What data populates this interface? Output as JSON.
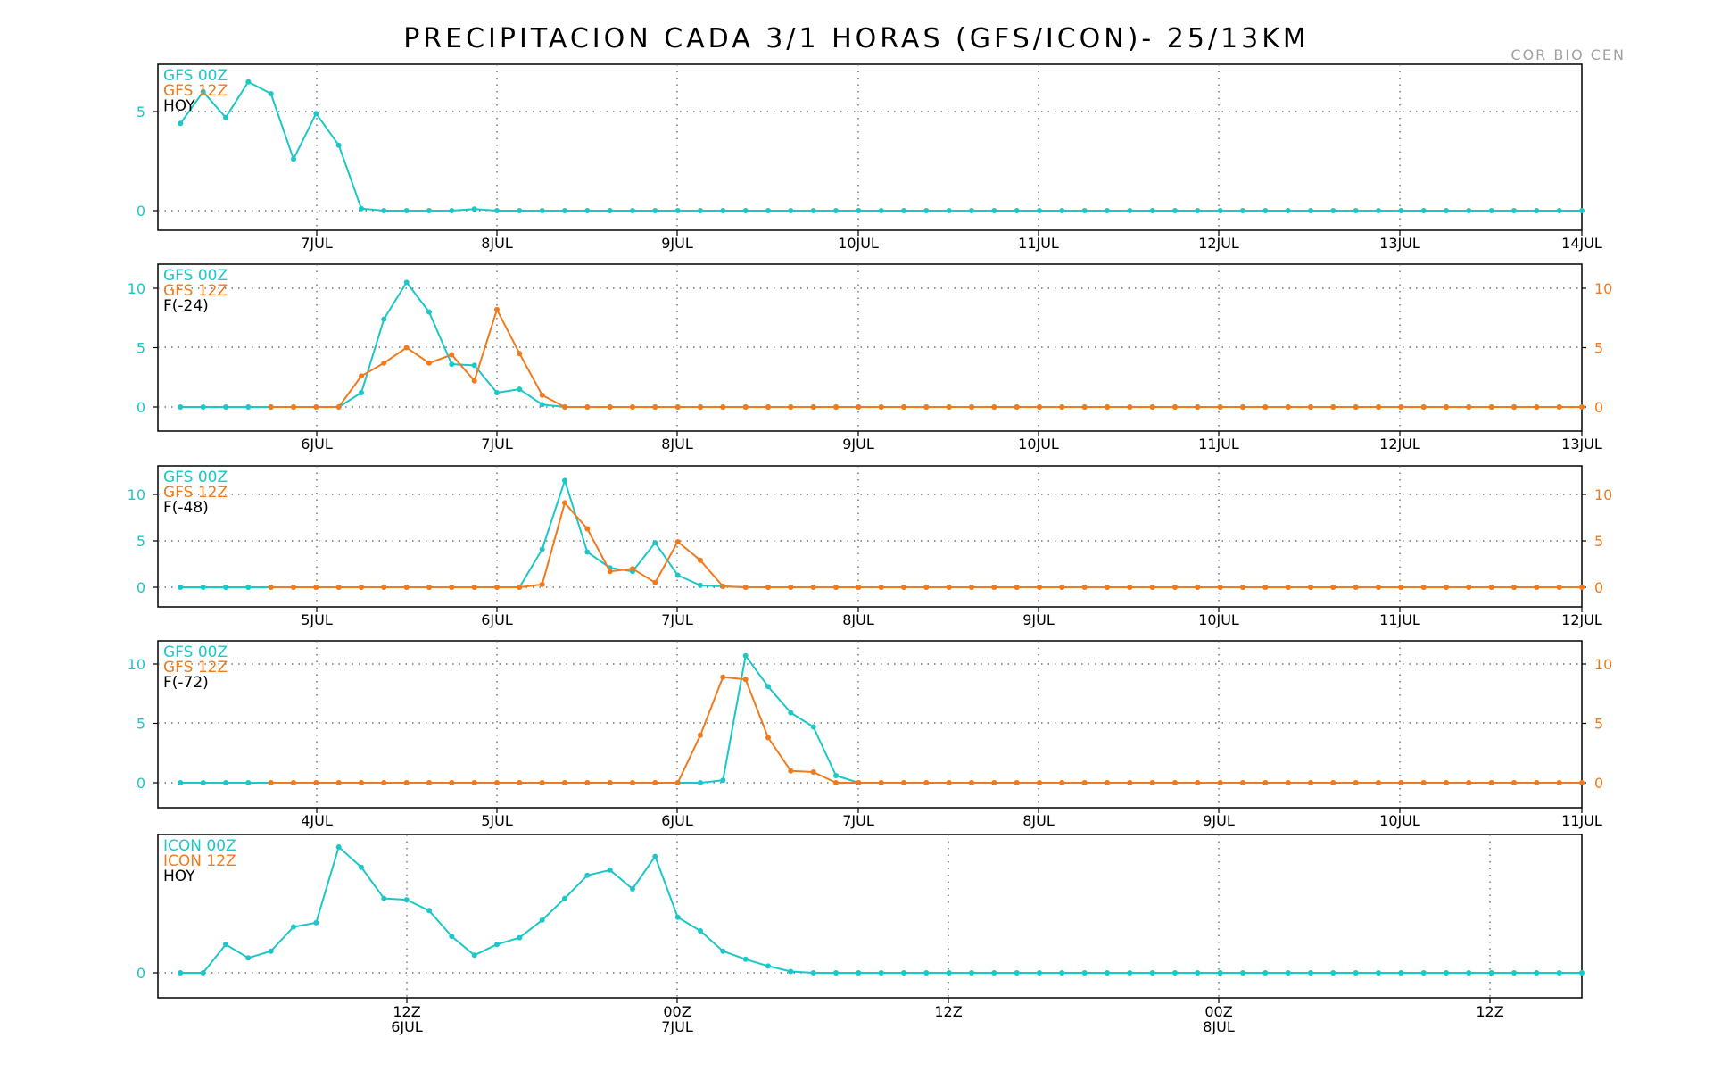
{
  "title": "PRECIPITACION CADA 3/1 HORAS (GFS/ICON)- 25/13KM",
  "credit": "COR BIO CEN",
  "colors": {
    "series_00z": "#1cc7c7",
    "series_12z": "#f07a1e",
    "axis": "#000000",
    "grid": "#555555",
    "label": "#000000"
  },
  "chart_data": [
    {
      "type": "line",
      "legend": [
        "GFS 00Z",
        "GFS 12Z",
        "HOY"
      ],
      "x_tick_labels": [
        "7JUL",
        "8JUL",
        "9JUL",
        "10JUL",
        "11JUL",
        "12JUL",
        "13JUL",
        "14JUL"
      ],
      "y_ticks_left": [
        "0",
        "5"
      ],
      "y_ticks_right": [],
      "ylim": [
        0,
        7
      ],
      "xlim": [
        0,
        63
      ],
      "grid": true,
      "series": [
        {
          "name": "GFS 00Z",
          "x": [
            1,
            2,
            3,
            4,
            5,
            6,
            7,
            8,
            9,
            10,
            11,
            12,
            13,
            14,
            15,
            16,
            17,
            18,
            19,
            20,
            21,
            22,
            23,
            24,
            25,
            26,
            27,
            28,
            29,
            30,
            31,
            32,
            33,
            34,
            35,
            36,
            37,
            38,
            39,
            40,
            41,
            42,
            43,
            44,
            45,
            46,
            47,
            48,
            49,
            50,
            51,
            52,
            53,
            54,
            55,
            56,
            57,
            58,
            59,
            60,
            61,
            62,
            63
          ],
          "values": [
            4.4,
            6.0,
            4.7,
            6.5,
            5.9,
            2.6,
            4.9,
            3.3,
            0.1,
            0,
            0,
            0,
            0,
            0.08,
            0,
            0,
            0,
            0,
            0,
            0,
            0,
            0,
            0,
            0,
            0,
            0,
            0,
            0,
            0,
            0,
            0,
            0,
            0,
            0,
            0,
            0,
            0,
            0,
            0,
            0,
            0,
            0,
            0,
            0,
            0,
            0,
            0,
            0,
            0,
            0,
            0,
            0,
            0,
            0,
            0,
            0,
            0,
            0,
            0,
            0,
            0,
            0,
            0
          ]
        }
      ]
    },
    {
      "type": "line",
      "legend": [
        "GFS 00Z",
        "GFS 12Z",
        "F(-24)"
      ],
      "x_tick_labels": [
        "6JUL",
        "7JUL",
        "8JUL",
        "9JUL",
        "10JUL",
        "11JUL",
        "12JUL",
        "13JUL"
      ],
      "y_ticks_left": [
        "0",
        "5",
        "10"
      ],
      "y_ticks_right": [
        "0",
        "5",
        "10"
      ],
      "ylim": [
        0,
        12
      ],
      "xlim": [
        0,
        63
      ],
      "grid": true,
      "series": [
        {
          "name": "GFS 00Z",
          "x": [
            1,
            2,
            3,
            4,
            5,
            6,
            7,
            8,
            9,
            10,
            11,
            12,
            13,
            14,
            15,
            16,
            17,
            18,
            19,
            20,
            21,
            22,
            23,
            24,
            25,
            26,
            27,
            28,
            29,
            30,
            31,
            32,
            33,
            34,
            35,
            36,
            37,
            38,
            39,
            40,
            41,
            42,
            43,
            44,
            45,
            46,
            47,
            48,
            49,
            50,
            51,
            52,
            53,
            54,
            55,
            56,
            57,
            58,
            59,
            60,
            61,
            62
          ],
          "values": [
            0,
            0,
            0,
            0,
            0,
            0,
            0,
            0,
            1.2,
            7.4,
            10.5,
            8.0,
            3.6,
            3.5,
            1.2,
            1.5,
            0.2,
            0,
            0,
            0,
            0,
            0,
            0,
            0,
            0,
            0,
            0,
            0,
            0,
            0,
            0,
            0,
            0,
            0,
            0,
            0,
            0,
            0,
            0,
            0,
            0,
            0,
            0,
            0,
            0,
            0,
            0,
            0,
            0,
            0,
            0,
            0,
            0,
            0,
            0,
            0,
            0,
            0,
            0,
            0,
            0,
            0
          ]
        },
        {
          "name": "GFS 12Z",
          "x": [
            5,
            6,
            7,
            8,
            9,
            10,
            11,
            12,
            13,
            14,
            15,
            16,
            17,
            18,
            19,
            20,
            21,
            22,
            23,
            24,
            25,
            26,
            27,
            28,
            29,
            30,
            31,
            32,
            33,
            34,
            35,
            36,
            37,
            38,
            39,
            40,
            41,
            42,
            43,
            44,
            45,
            46,
            47,
            48,
            49,
            50,
            51,
            52,
            53,
            54,
            55,
            56,
            57,
            58,
            59,
            60,
            61,
            62,
            63
          ],
          "values": [
            0,
            0,
            0,
            0,
            2.6,
            3.7,
            5.0,
            3.7,
            4.4,
            2.2,
            8.2,
            4.5,
            1.0,
            0,
            0,
            0,
            0,
            0,
            0,
            0,
            0,
            0,
            0,
            0,
            0,
            0,
            0,
            0,
            0,
            0,
            0,
            0,
            0,
            0,
            0,
            0,
            0,
            0,
            0,
            0,
            0,
            0,
            0,
            0,
            0,
            0,
            0,
            0,
            0,
            0,
            0,
            0,
            0,
            0,
            0,
            0,
            0,
            0,
            0
          ]
        }
      ]
    },
    {
      "type": "line",
      "legend": [
        "GFS 00Z",
        "GFS 12Z",
        "F(-48)"
      ],
      "x_tick_labels": [
        "5JUL",
        "6JUL",
        "7JUL",
        "8JUL",
        "9JUL",
        "10JUL",
        "11JUL",
        "12JUL"
      ],
      "y_ticks_left": [
        "0",
        "5",
        "10"
      ],
      "y_ticks_right": [
        "0",
        "5",
        "10"
      ],
      "ylim": [
        0,
        14
      ],
      "xlim": [
        0,
        63
      ],
      "grid": true,
      "series": [
        {
          "name": "GFS 00Z",
          "x": [
            1,
            2,
            3,
            4,
            5,
            6,
            7,
            8,
            9,
            10,
            11,
            12,
            13,
            14,
            15,
            16,
            17,
            18,
            19,
            20,
            21,
            22,
            23,
            24,
            25,
            26,
            27,
            28,
            29,
            30,
            31,
            32,
            33,
            34,
            35,
            36,
            37,
            38,
            39,
            40,
            41,
            42,
            43,
            44,
            45,
            46,
            47,
            48,
            49,
            50,
            51,
            52,
            53,
            54,
            55,
            56,
            57,
            58,
            59,
            60,
            61,
            62
          ],
          "values": [
            0,
            0,
            0,
            0,
            0,
            0,
            0,
            0,
            0,
            0,
            0,
            0,
            0,
            0,
            0,
            0,
            4.1,
            11.5,
            3.8,
            2.1,
            1.7,
            4.8,
            1.3,
            0.2,
            0.1,
            0,
            0,
            0,
            0,
            0,
            0,
            0,
            0,
            0,
            0,
            0,
            0,
            0,
            0,
            0,
            0,
            0,
            0,
            0,
            0,
            0,
            0,
            0,
            0,
            0,
            0,
            0,
            0,
            0,
            0,
            0,
            0,
            0,
            0,
            0,
            0,
            0
          ]
        },
        {
          "name": "GFS 12Z",
          "x": [
            5,
            6,
            7,
            8,
            9,
            10,
            11,
            12,
            13,
            14,
            15,
            16,
            17,
            18,
            19,
            20,
            21,
            22,
            23,
            24,
            25,
            26,
            27,
            28,
            29,
            30,
            31,
            32,
            33,
            34,
            35,
            36,
            37,
            38,
            39,
            40,
            41,
            42,
            43,
            44,
            45,
            46,
            47,
            48,
            49,
            50,
            51,
            52,
            53,
            54,
            55,
            56,
            57,
            58,
            59,
            60,
            61,
            62,
            63
          ],
          "values": [
            0,
            0,
            0,
            0,
            0,
            0,
            0,
            0,
            0,
            0,
            0,
            0,
            0.3,
            9.1,
            6.3,
            1.7,
            2.0,
            0.5,
            4.9,
            2.9,
            0.1,
            0,
            0,
            0,
            0,
            0,
            0,
            0,
            0,
            0,
            0,
            0,
            0,
            0,
            0,
            0,
            0,
            0,
            0,
            0,
            0,
            0,
            0,
            0,
            0,
            0,
            0,
            0,
            0,
            0,
            0,
            0,
            0,
            0,
            0,
            0,
            0,
            0,
            0
          ]
        }
      ]
    },
    {
      "type": "line",
      "legend": [
        "GFS 00Z",
        "GFS 12Z",
        "F(-72)"
      ],
      "x_tick_labels": [
        "4JUL",
        "5JUL",
        "6JUL",
        "7JUL",
        "8JUL",
        "9JUL",
        "10JUL",
        "11JUL"
      ],
      "y_ticks_left": [
        "0",
        "5",
        "10"
      ],
      "y_ticks_right": [
        "0",
        "5",
        "10"
      ],
      "ylim": [
        0,
        12
      ],
      "xlim": [
        0,
        63
      ],
      "grid": true,
      "series": [
        {
          "name": "GFS 00Z",
          "x": [
            1,
            2,
            3,
            4,
            5,
            6,
            7,
            8,
            9,
            10,
            11,
            12,
            13,
            14,
            15,
            16,
            17,
            18,
            19,
            20,
            21,
            22,
            23,
            24,
            25,
            26,
            27,
            28,
            29,
            30,
            31,
            32,
            33,
            34,
            35,
            36,
            37,
            38,
            39,
            40,
            41,
            42,
            43,
            44,
            45,
            46,
            47,
            48,
            49,
            50,
            51,
            52,
            53,
            54,
            55,
            56,
            57,
            58,
            59,
            60,
            61,
            62
          ],
          "values": [
            0,
            0,
            0,
            0,
            0,
            0,
            0,
            0,
            0,
            0,
            0,
            0,
            0,
            0,
            0,
            0,
            0,
            0,
            0,
            0,
            0,
            0,
            0,
            0,
            0.2,
            10.7,
            8.1,
            5.9,
            4.7,
            0.6,
            0,
            0,
            0,
            0,
            0,
            0,
            0,
            0,
            0,
            0,
            0,
            0,
            0,
            0,
            0,
            0,
            0,
            0,
            0,
            0,
            0,
            0,
            0,
            0,
            0,
            0,
            0,
            0,
            0,
            0,
            0,
            0
          ]
        },
        {
          "name": "GFS 12Z",
          "x": [
            5,
            6,
            7,
            8,
            9,
            10,
            11,
            12,
            13,
            14,
            15,
            16,
            17,
            18,
            19,
            20,
            21,
            22,
            23,
            24,
            25,
            26,
            27,
            28,
            29,
            30,
            31,
            32,
            33,
            34,
            35,
            36,
            37,
            38,
            39,
            40,
            41,
            42,
            43,
            44,
            45,
            46,
            47,
            48,
            49,
            50,
            51,
            52,
            53,
            54,
            55,
            56,
            57,
            58,
            59,
            60,
            61,
            62,
            63
          ],
          "values": [
            0,
            0,
            0,
            0,
            0,
            0,
            0,
            0,
            0,
            0,
            0,
            0,
            0,
            0,
            0,
            0,
            0,
            0,
            0,
            4.0,
            8.9,
            8.7,
            3.8,
            1.0,
            0.9,
            0,
            0,
            0,
            0,
            0,
            0,
            0,
            0,
            0,
            0,
            0,
            0,
            0,
            0,
            0,
            0,
            0,
            0,
            0,
            0,
            0,
            0,
            0,
            0,
            0,
            0,
            0,
            0,
            0,
            0,
            0,
            0,
            0,
            0
          ]
        }
      ]
    },
    {
      "type": "line",
      "legend": [
        "ICON 00Z",
        "ICON 12Z",
        "HOY"
      ],
      "x_tick_labels": [
        "12Z",
        "00Z",
        "12Z",
        "00Z",
        "12Z"
      ],
      "x_tick_sublabels": [
        "6JUL",
        "7JUL",
        "",
        "8JUL",
        ""
      ],
      "y_ticks_left": [
        "0"
      ],
      "y_ticks_right": [],
      "ylim": [
        -0.1,
        1.0
      ],
      "xlim": [
        0,
        63
      ],
      "grid": true,
      "series": [
        {
          "name": "ICON 00Z",
          "x": [
            1,
            2,
            3,
            4,
            5,
            6,
            7,
            8,
            9,
            10,
            11,
            12,
            13,
            14,
            15,
            16,
            17,
            18,
            19,
            20,
            21,
            22,
            23,
            24,
            25,
            26,
            27,
            28,
            29,
            30,
            31,
            32,
            33,
            34,
            35,
            36,
            37,
            38,
            39,
            40,
            41,
            42,
            43,
            44,
            45,
            46,
            47,
            48,
            49,
            50,
            51,
            52,
            53,
            54,
            55,
            56,
            57,
            58,
            59,
            60,
            61,
            62,
            63
          ],
          "values": [
            0,
            0,
            0.21,
            0.11,
            0.16,
            0.34,
            0.37,
            0.93,
            0.78,
            0.55,
            0.54,
            0.46,
            0.27,
            0.13,
            0.21,
            0.26,
            0.39,
            0.55,
            0.72,
            0.76,
            0.62,
            0.86,
            0.41,
            0.31,
            0.16,
            0.1,
            0.05,
            0.01,
            0,
            0,
            0,
            0,
            0,
            0,
            0,
            0,
            0,
            0,
            0,
            0,
            0,
            0,
            0,
            0,
            0,
            0,
            0,
            0,
            0,
            0,
            0,
            0,
            0,
            0,
            0,
            0,
            0,
            0,
            0,
            0,
            0,
            0,
            0
          ]
        }
      ]
    }
  ]
}
